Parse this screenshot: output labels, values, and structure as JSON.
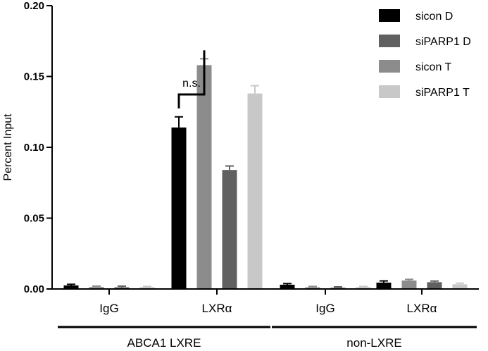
{
  "chart_data": {
    "type": "bar",
    "ylabel": "Percent Input",
    "ylim": [
      0,
      0.2
    ],
    "yticks": [
      "0.00",
      "0.05",
      "0.10",
      "0.15",
      "0.20"
    ],
    "ytick_values": [
      0,
      0.05,
      0.1,
      0.15,
      0.2
    ],
    "categories": [
      "IgG",
      "LXRα",
      "IgG",
      "LXRα"
    ],
    "groups": [
      {
        "label": "ABCA1 LXRE",
        "categories": [
          0,
          1
        ]
      },
      {
        "label": "non-LXRE",
        "categories": [
          2,
          3
        ]
      }
    ],
    "series": [
      {
        "name": "sicon D",
        "color": "#000000",
        "values": [
          0.0025,
          0.114,
          0.003,
          0.0045
        ],
        "errors": [
          0.0008,
          0.0075,
          0.0008,
          0.0012
        ]
      },
      {
        "name": "siPARP1 D",
        "color": "#606060",
        "values": [
          0.0012,
          0.084,
          0.0009,
          0.0048
        ],
        "errors": [
          0.0008,
          0.0028,
          0.0006,
          0.0008
        ]
      },
      {
        "name": "sicon T",
        "color": "#8c8c8c",
        "values": [
          0.0014,
          0.158,
          0.0012,
          0.006
        ],
        "errors": [
          0.0006,
          0.0045,
          0.0006,
          0.0008
        ]
      },
      {
        "name": "siPARP1 T",
        "color": "#c8c8c8",
        "values": [
          0.0013,
          0.138,
          0.0013,
          0.0033
        ],
        "errors": [
          0.0005,
          0.0055,
          0.0005,
          0.0008
        ]
      }
    ],
    "bar_order": [
      0,
      2,
      1,
      3
    ],
    "annotation": {
      "text": "n.s.",
      "between": [
        [
          1,
          0
        ],
        [
          1,
          2
        ]
      ]
    },
    "legend_position": "top-right",
    "grid": false
  }
}
